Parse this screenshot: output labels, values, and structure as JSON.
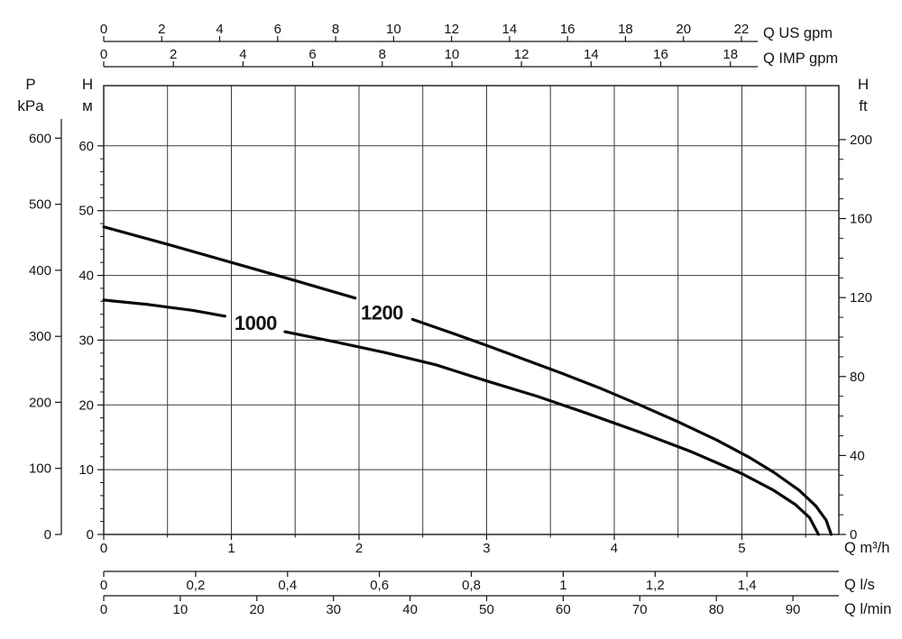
{
  "chart_data": {
    "type": "line",
    "title": "",
    "flow_base_unit": "m³/h",
    "head_base_unit": "m",
    "axis_ranges": {
      "q_m3h": [
        0,
        5.76
      ],
      "h_m": [
        0,
        69.3
      ]
    },
    "grid": {
      "show": true,
      "vertical_step_m3h": 0.5,
      "horizontal_step_m": 10
    },
    "colors": {
      "curve": "#0a0a0a",
      "grid": "#3d3d3d",
      "axis": "#151515",
      "text": "#151515",
      "background": "#ffffff"
    },
    "top_axes": [
      {
        "id": "q-us-gpm",
        "unit_label": "Q US gpm",
        "to_base": 0.22712,
        "ticks": [
          0,
          2,
          4,
          6,
          8,
          10,
          12,
          14,
          16,
          18,
          20,
          22
        ]
      },
      {
        "id": "q-imp-gpm",
        "unit_label": "Q IMP gpm",
        "to_base": 0.27277,
        "ticks": [
          0,
          2,
          4,
          6,
          8,
          10,
          12,
          14,
          16,
          18
        ]
      }
    ],
    "bottom_axes": [
      {
        "id": "q-m3h",
        "unit_label": "Q m³/h",
        "to_base": 1,
        "ticks": [
          0,
          1,
          2,
          3,
          4,
          5
        ],
        "tick_labels": [
          "0",
          "1",
          "2",
          "3",
          "4",
          "5"
        ],
        "minor_step": 0.5
      },
      {
        "id": "q-l-s",
        "unit_label": "Q l/s",
        "to_base": 3.6,
        "ticks": [
          0,
          0.2,
          0.4,
          0.6,
          0.8,
          1,
          1.2,
          1.4
        ],
        "tick_labels": [
          "0",
          "0,2",
          "0,4",
          "0,6",
          "0,8",
          "1",
          "1,2",
          "1,4"
        ]
      },
      {
        "id": "q-l-min",
        "unit_label": "Q l/min",
        "to_base": 0.06,
        "ticks": [
          0,
          10,
          20,
          30,
          40,
          50,
          60,
          70,
          80,
          90
        ],
        "tick_labels": [
          "0",
          "10",
          "20",
          "30",
          "40",
          "50",
          "60",
          "70",
          "80",
          "90"
        ]
      }
    ],
    "left_axes": [
      {
        "id": "p-kpa",
        "header_lines": [
          "P",
          "kPa"
        ],
        "to_base": 0.10197,
        "ticks": [
          0,
          100,
          200,
          300,
          400,
          500,
          600
        ]
      },
      {
        "id": "h-m",
        "header_lines": [
          "H",
          "м"
        ],
        "to_base": 1,
        "ticks": [
          0,
          10,
          20,
          30,
          40,
          50,
          60
        ],
        "minor_step": 2
      }
    ],
    "right_axes": [
      {
        "id": "h-ft",
        "header_lines": [
          "H",
          "ft"
        ],
        "to_base": 0.3048,
        "ticks": [
          0,
          40,
          80,
          120,
          160,
          200
        ],
        "minor_step": 10
      }
    ],
    "series": [
      {
        "name": "1000",
        "label_pos": {
          "q": 1.19,
          "h": 32.7
        },
        "segments": [
          [
            [
              0,
              36.2
            ],
            [
              0.35,
              35.5
            ],
            [
              0.7,
              34.6
            ],
            [
              0.95,
              33.7
            ]
          ],
          [
            [
              1.42,
              31.3
            ],
            [
              1.8,
              29.8
            ],
            [
              2.2,
              28.1
            ],
            [
              2.6,
              26.2
            ],
            [
              3.0,
              23.7
            ],
            [
              3.4,
              21.3
            ],
            [
              3.8,
              18.6
            ],
            [
              4.2,
              15.8
            ],
            [
              4.6,
              12.8
            ],
            [
              5.0,
              9.4
            ],
            [
              5.25,
              6.8
            ],
            [
              5.42,
              4.6
            ],
            [
              5.53,
              2.6
            ],
            [
              5.6,
              0
            ]
          ]
        ]
      },
      {
        "name": "1200",
        "label_pos": {
          "q": 2.18,
          "h": 34.3
        },
        "segments": [
          [
            [
              0,
              47.5
            ],
            [
              0.5,
              44.8
            ],
            [
              1.0,
              42.0
            ],
            [
              1.5,
              39.2
            ],
            [
              1.97,
              36.5
            ]
          ],
          [
            [
              2.42,
              33.2
            ],
            [
              2.7,
              31.3
            ],
            [
              3.0,
              29.2
            ],
            [
              3.3,
              27.0
            ],
            [
              3.6,
              24.8
            ],
            [
              3.9,
              22.5
            ],
            [
              4.2,
              20.0
            ],
            [
              4.5,
              17.4
            ],
            [
              4.8,
              14.6
            ],
            [
              5.05,
              12.0
            ],
            [
              5.25,
              9.6
            ],
            [
              5.45,
              6.8
            ],
            [
              5.58,
              4.4
            ],
            [
              5.66,
              2.2
            ],
            [
              5.7,
              0
            ]
          ]
        ]
      }
    ]
  }
}
